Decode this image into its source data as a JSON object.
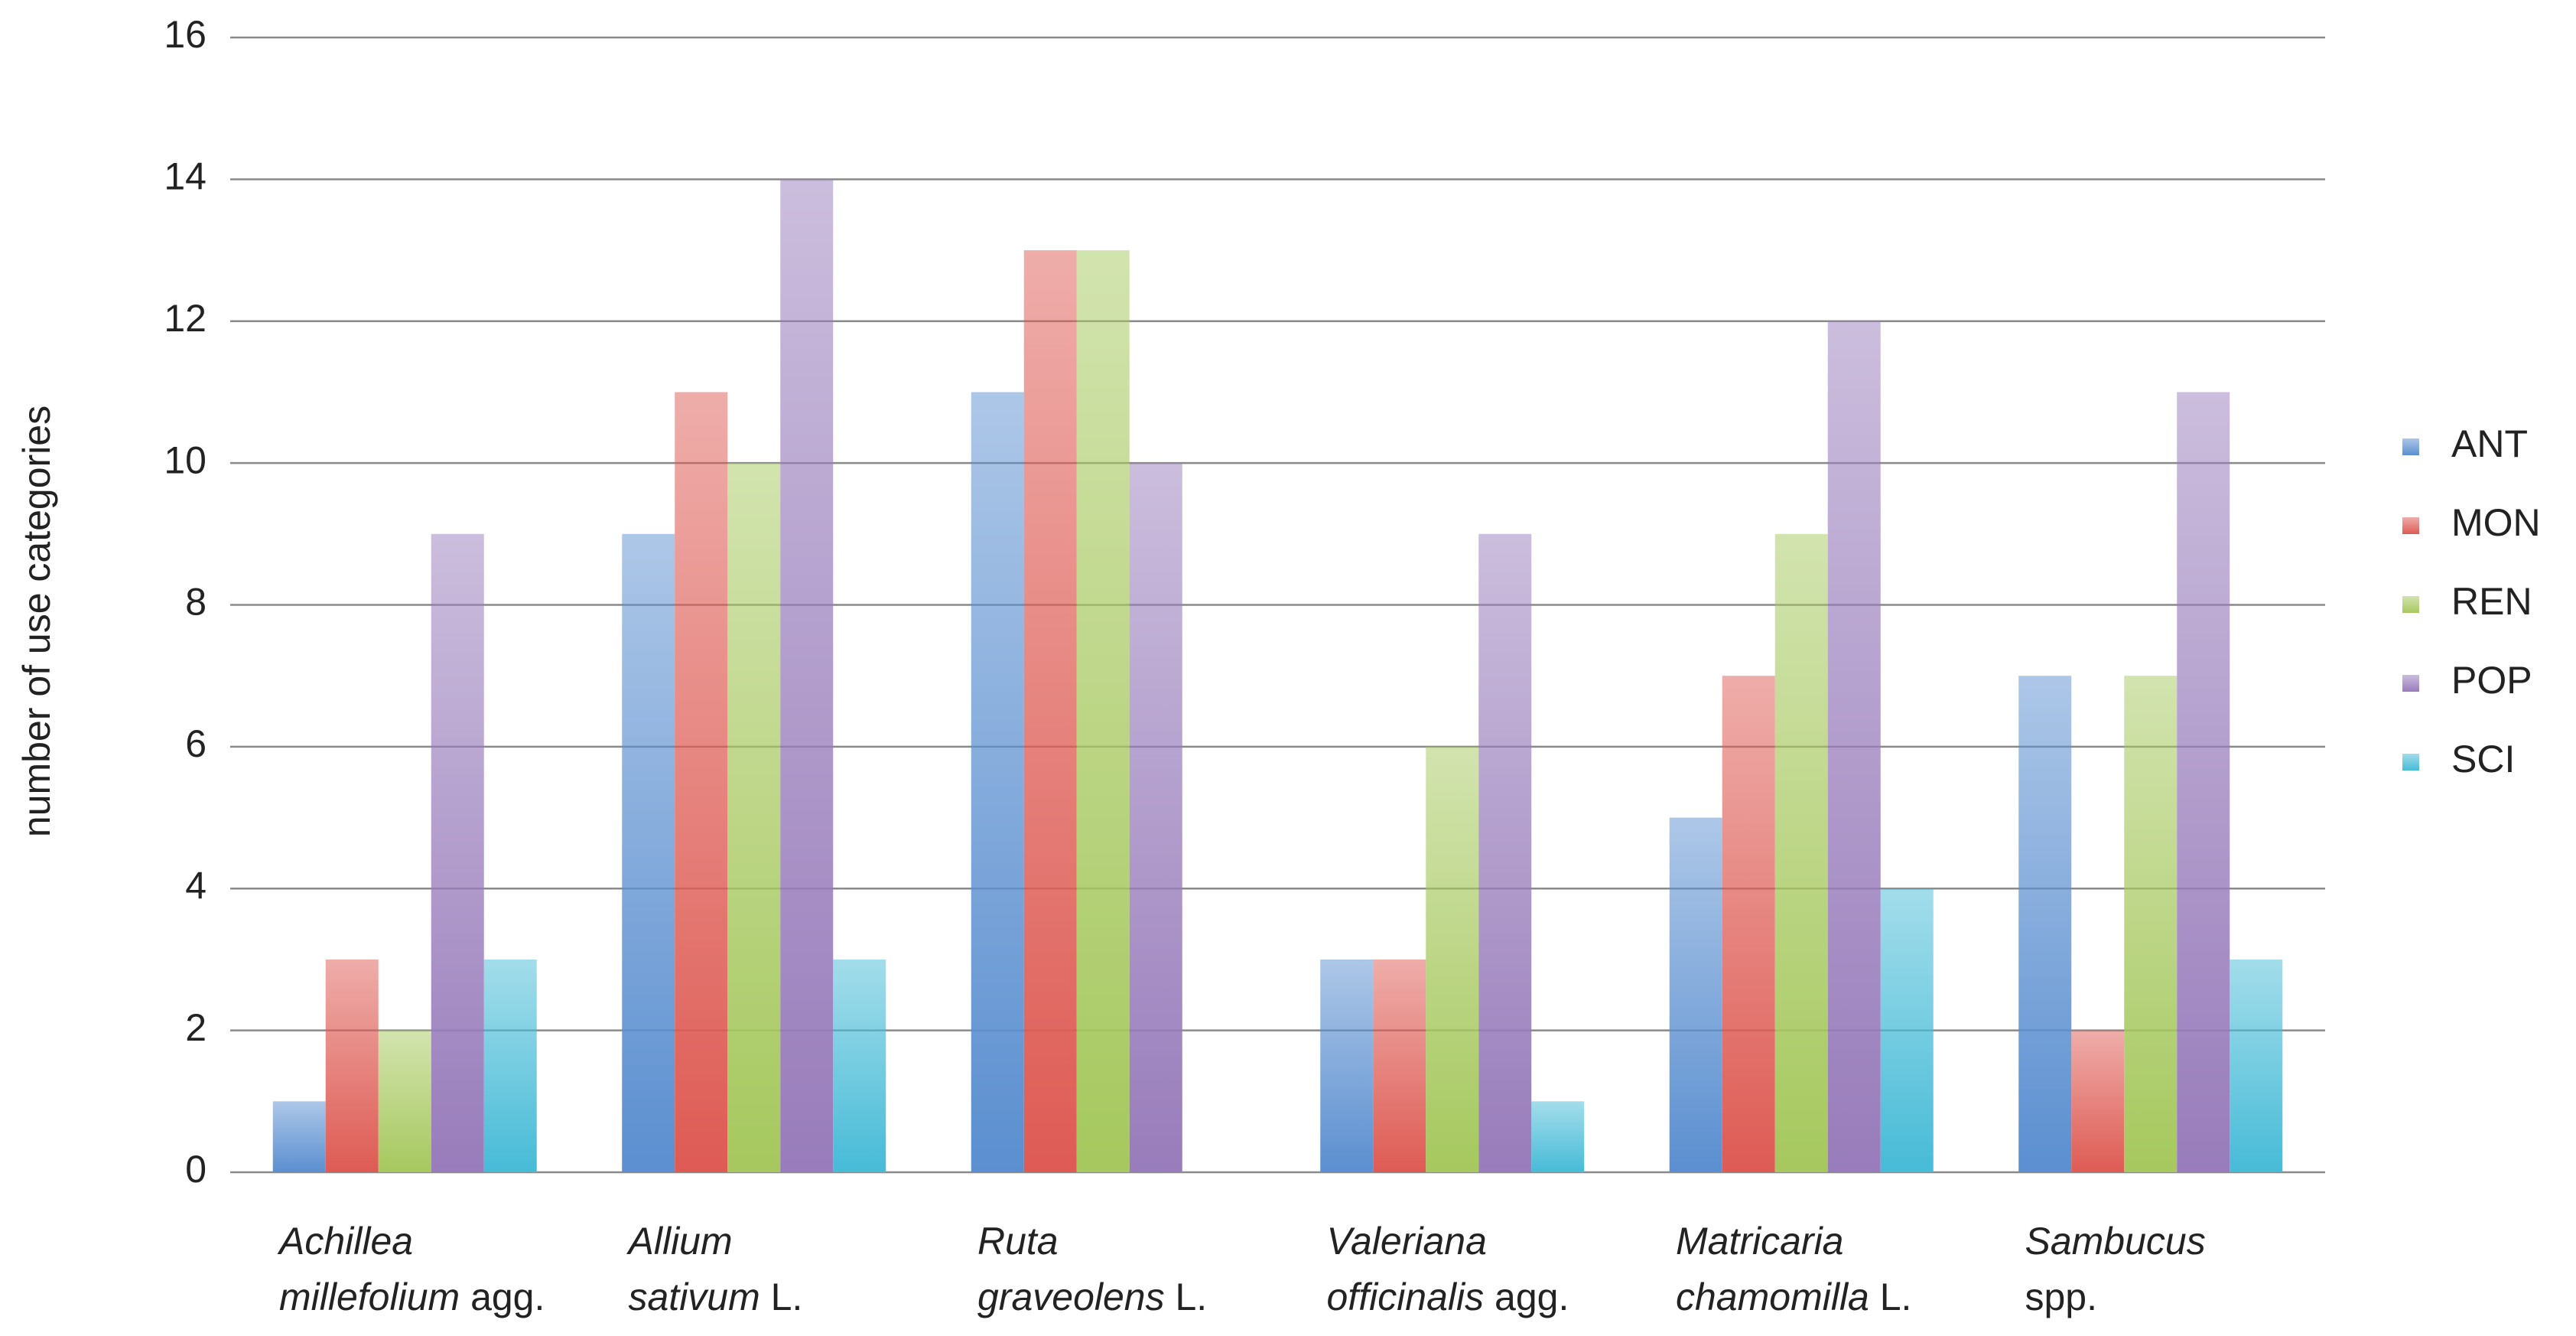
{
  "chart_data": {
    "type": "bar",
    "y_label": "number of use categories",
    "categories": [
      "Achillea millefolium agg.",
      "Allium sativum L.",
      "Ruta graveolens L.",
      "Valeriana officinalis agg.",
      "Matricaria chamomilla L.",
      "Sambucus spp."
    ],
    "series": [
      {
        "name": "ANT",
        "color": "#5b8fd0",
        "values": [
          1,
          9,
          11,
          3,
          5,
          7
        ]
      },
      {
        "name": "MON",
        "color": "#de5b54",
        "values": [
          3,
          11,
          13,
          3,
          7,
          2
        ]
      },
      {
        "name": "REN",
        "color": "#a6c85e",
        "values": [
          2,
          10,
          13,
          6,
          9,
          7
        ]
      },
      {
        "name": "POP",
        "color": "#987cbb",
        "values": [
          9,
          14,
          10,
          9,
          12,
          11
        ]
      },
      {
        "name": "SCI",
        "color": "#47bbd7",
        "values": [
          3,
          3,
          0,
          1,
          4,
          3
        ]
      }
    ],
    "ylim": [
      0,
      16
    ],
    "yticks": [
      0,
      2,
      4,
      6,
      8,
      10,
      12,
      14,
      16
    ],
    "grid": true,
    "legend": "right"
  }
}
